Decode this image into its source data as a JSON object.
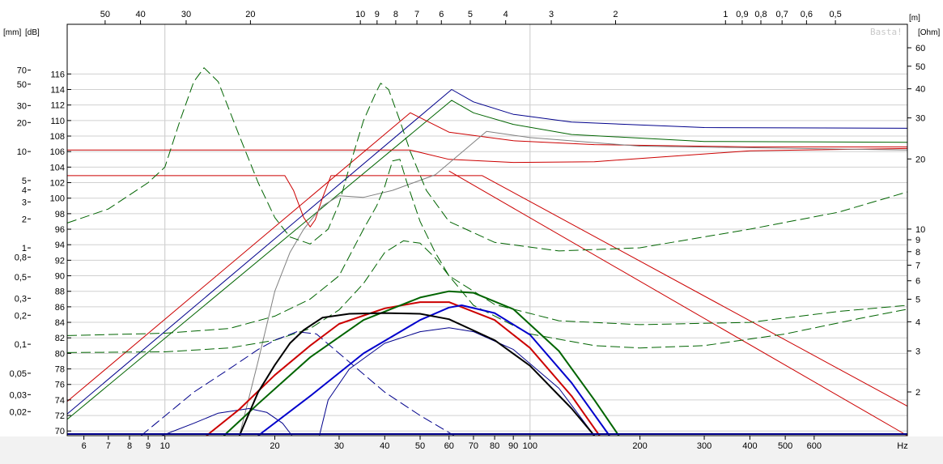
{
  "chart_data": {
    "type": "line",
    "watermark": "Basta!",
    "units": {
      "mm": "[mm]",
      "db": "[dB]",
      "m": "[m]",
      "ohm": "[Ohm]",
      "hz": "Hz"
    },
    "x_axis": {
      "scale": "log",
      "range_hz": [
        5.4,
        1080
      ],
      "ticks": [
        "6",
        "7",
        "8",
        "9",
        "10",
        "20",
        "30",
        "40",
        "50",
        "60",
        "70",
        "80",
        "90",
        "100",
        "200",
        "300",
        "400",
        "500",
        "600",
        "Hz"
      ],
      "tick_values": [
        6,
        7,
        8,
        9,
        10,
        20,
        30,
        40,
        50,
        60,
        70,
        80,
        90,
        100,
        200,
        300,
        400,
        500,
        600,
        null
      ]
    },
    "top_axis": {
      "label": "[m]",
      "ticks": [
        "50",
        "40",
        "30",
        "20",
        "10",
        "9",
        "8",
        "7",
        "6",
        "5",
        "4",
        "3",
        "2",
        "1",
        "0,9",
        "0,8",
        "0,7",
        "0,6",
        "0,5"
      ],
      "tick_values": [
        50,
        40,
        30,
        20,
        10,
        9,
        8,
        7,
        6,
        5,
        4,
        3,
        2,
        1,
        0.9,
        0.8,
        0.7,
        0.6,
        0.5
      ]
    },
    "db_axis": {
      "label": "[dB]",
      "range": [
        69.4,
        122.4
      ],
      "ticks": [
        "70",
        "72",
        "74",
        "76",
        "78",
        "80",
        "82",
        "84",
        "86",
        "88",
        "90",
        "92",
        "94",
        "96",
        "98",
        "100",
        "102",
        "104",
        "106",
        "108",
        "110",
        "112",
        "114",
        "116"
      ],
      "tick_values": [
        70,
        72,
        74,
        76,
        78,
        80,
        82,
        84,
        86,
        88,
        90,
        92,
        94,
        96,
        98,
        100,
        102,
        104,
        106,
        108,
        110,
        112,
        114,
        116
      ]
    },
    "mm_axis": {
      "label": "[mm]",
      "ticks": [
        "70",
        "50",
        "30",
        "20",
        "10",
        "5",
        "4",
        "3",
        "2",
        "1",
        "0,8",
        "0,5",
        "0,3",
        "0,2",
        "0,1",
        "0,05",
        "0,03",
        "0,02"
      ],
      "tick_values": [
        70,
        50,
        30,
        20,
        10,
        5,
        4,
        3,
        2,
        1,
        0.8,
        0.5,
        0.3,
        0.2,
        0.1,
        0.05,
        0.03,
        0.02
      ]
    },
    "ohm_axis": {
      "label": "[Ohm]",
      "ticks": [
        "60",
        "50",
        "40",
        "30",
        "20",
        "10",
        "9",
        "8",
        "7",
        "6",
        "5",
        "4",
        "3",
        "2"
      ],
      "tick_values": [
        60,
        50,
        40,
        30,
        20,
        10,
        9,
        8,
        7,
        6,
        5,
        4,
        3,
        2
      ]
    },
    "series": [
      {
        "color": "#00008b",
        "width": 1,
        "dash": false,
        "points": [
          [
            5.4,
            72.2
          ],
          [
            61,
            114
          ],
          [
            70,
            112.4
          ],
          [
            90,
            110.8
          ],
          [
            130,
            109.8
          ],
          [
            300,
            109.1
          ],
          [
            1080,
            109
          ]
        ]
      },
      {
        "color": "#006400",
        "width": 1,
        "dash": false,
        "points": [
          [
            5.4,
            71.5
          ],
          [
            61,
            112.6
          ],
          [
            70,
            111
          ],
          [
            90,
            109.5
          ],
          [
            130,
            108.2
          ],
          [
            300,
            107.3
          ],
          [
            1080,
            107.2
          ]
        ]
      },
      {
        "color": "#cc0000",
        "width": 1,
        "dash": false,
        "points": [
          [
            5.4,
            73.8
          ],
          [
            47,
            111
          ],
          [
            60,
            108.5
          ],
          [
            90,
            107.4
          ],
          [
            150,
            106.9
          ],
          [
            400,
            106.6
          ],
          [
            1080,
            106.6
          ]
        ]
      },
      {
        "color": "#cc0000",
        "width": 1,
        "dash": false,
        "points": [
          [
            5.4,
            106.2
          ],
          [
            47,
            106.2
          ],
          [
            60,
            105
          ],
          [
            90,
            104.6
          ],
          [
            150,
            104.7
          ],
          [
            400,
            106.1
          ],
          [
            1080,
            106.4
          ]
        ]
      },
      {
        "color": "#cc0000",
        "width": 1,
        "dash": false,
        "points": [
          [
            5.4,
            102.9
          ],
          [
            21.3,
            102.9
          ],
          [
            22.5,
            101
          ],
          [
            24,
            97.5
          ],
          [
            25,
            96.3
          ],
          [
            25.8,
            97.2
          ],
          [
            27,
            100
          ],
          [
            28.5,
            102.9
          ],
          [
            74,
            102.9
          ],
          [
            1080,
            73.2
          ]
        ]
      },
      {
        "color": "#cc0000",
        "width": 1,
        "dash": false,
        "points": [
          [
            60,
            103.5
          ],
          [
            1080,
            69.3
          ]
        ]
      },
      {
        "color": "#808080",
        "width": 1,
        "dash": false,
        "points": [
          [
            16,
            69.4
          ],
          [
            18,
            79
          ],
          [
            20,
            88
          ],
          [
            22,
            93
          ],
          [
            24,
            96
          ],
          [
            27,
            99
          ],
          [
            30,
            100.3
          ],
          [
            35,
            100.1
          ],
          [
            42,
            101
          ],
          [
            55,
            103
          ],
          [
            76,
            108.6
          ],
          [
            100,
            107.8
          ],
          [
            200,
            106.7
          ],
          [
            1080,
            106.2
          ]
        ]
      },
      {
        "color": "#006400",
        "width": 1,
        "dash": true,
        "points": [
          [
            5.4,
            96.8
          ],
          [
            7,
            98.6
          ],
          [
            9,
            102
          ],
          [
            10,
            104
          ],
          [
            11,
            110
          ],
          [
            12,
            115
          ],
          [
            12.8,
            116.8
          ],
          [
            14,
            115
          ],
          [
            16,
            108
          ],
          [
            18,
            102
          ],
          [
            20,
            97.5
          ],
          [
            22,
            95
          ],
          [
            25,
            94.1
          ],
          [
            28,
            96
          ],
          [
            30,
            99.3
          ],
          [
            32,
            104
          ],
          [
            35,
            110
          ],
          [
            38,
            113.8
          ],
          [
            39,
            114.8
          ],
          [
            41,
            114
          ],
          [
            44,
            110
          ],
          [
            47,
            106
          ],
          [
            52,
            101
          ],
          [
            60,
            97
          ],
          [
            80,
            94.3
          ],
          [
            120,
            93.2
          ],
          [
            200,
            93.6
          ],
          [
            400,
            96
          ],
          [
            700,
            98.2
          ],
          [
            1080,
            100.8
          ]
        ]
      },
      {
        "color": "#006400",
        "width": 1,
        "dash": true,
        "points": [
          [
            5.4,
            82.3
          ],
          [
            10,
            82.6
          ],
          [
            15,
            83.2
          ],
          [
            20,
            84.8
          ],
          [
            25,
            87
          ],
          [
            30,
            90
          ],
          [
            35,
            96
          ],
          [
            38,
            99
          ],
          [
            40,
            101.5
          ],
          [
            42,
            104.8
          ],
          [
            44,
            105
          ],
          [
            46,
            102
          ],
          [
            50,
            97
          ],
          [
            55,
            93
          ],
          [
            60,
            90
          ],
          [
            80,
            86.3
          ],
          [
            120,
            84.2
          ],
          [
            200,
            83.7
          ],
          [
            400,
            84
          ],
          [
            700,
            85.4
          ],
          [
            1080,
            86.2
          ]
        ]
      },
      {
        "color": "#006400",
        "width": 1,
        "dash": true,
        "points": [
          [
            5.4,
            80.1
          ],
          [
            10,
            80.2
          ],
          [
            15,
            80.7
          ],
          [
            20,
            81.7
          ],
          [
            25,
            83.2
          ],
          [
            30,
            85.6
          ],
          [
            35,
            89
          ],
          [
            40,
            93
          ],
          [
            45,
            94.5
          ],
          [
            50,
            94.2
          ],
          [
            55,
            92.3
          ],
          [
            60,
            90
          ],
          [
            70,
            86.2
          ],
          [
            100,
            82.5
          ],
          [
            150,
            81
          ],
          [
            200,
            80.7
          ],
          [
            300,
            81
          ],
          [
            500,
            82.5
          ],
          [
            800,
            84.5
          ],
          [
            1080,
            85.7
          ]
        ]
      },
      {
        "color": "#00008b",
        "width": 1,
        "dash": true,
        "points": [
          [
            8.6,
            69.4
          ],
          [
            12,
            75
          ],
          [
            15,
            78
          ],
          [
            18,
            80.5
          ],
          [
            20,
            81.7
          ],
          [
            23,
            82.8
          ],
          [
            26,
            82.5
          ],
          [
            30,
            80
          ],
          [
            40,
            75
          ],
          [
            50,
            72
          ],
          [
            62,
            69.4
          ]
        ]
      },
      {
        "color": "#00008b",
        "width": 1,
        "dash": false,
        "points": [
          [
            9.8,
            69.4
          ],
          [
            12,
            71
          ],
          [
            14,
            72.3
          ],
          [
            17,
            72.9
          ],
          [
            19,
            72.4
          ],
          [
            21,
            71
          ],
          [
            22.3,
            69.4
          ]
        ]
      },
      {
        "color": "#00008b",
        "width": 1,
        "dash": false,
        "points": [
          [
            26.5,
            69.4
          ],
          [
            28,
            74
          ],
          [
            32,
            78
          ],
          [
            40,
            81.3
          ],
          [
            50,
            82.8
          ],
          [
            60,
            83.3
          ],
          [
            70,
            82.8
          ],
          [
            90,
            80.5
          ],
          [
            120,
            75.5
          ],
          [
            150,
            69.4
          ]
        ]
      },
      {
        "color": "#cc0000",
        "width": 2,
        "dash": false,
        "points": [
          [
            13,
            69.4
          ],
          [
            16,
            72.8
          ],
          [
            20,
            77.2
          ],
          [
            25,
            81
          ],
          [
            30,
            83.8
          ],
          [
            40,
            85.8
          ],
          [
            50,
            86.6
          ],
          [
            60,
            86.6
          ],
          [
            80,
            84.3
          ],
          [
            100,
            80.7
          ],
          [
            130,
            74.5
          ],
          [
            155,
            69.4
          ]
        ]
      },
      {
        "color": "#006400",
        "width": 2,
        "dash": false,
        "points": [
          [
            14.5,
            69.4
          ],
          [
            18,
            73.5
          ],
          [
            25,
            79.5
          ],
          [
            35,
            84.3
          ],
          [
            50,
            87.2
          ],
          [
            60,
            88
          ],
          [
            70,
            87.8
          ],
          [
            90,
            85.7
          ],
          [
            120,
            80.3
          ],
          [
            150,
            74
          ],
          [
            175,
            69.4
          ]
        ]
      },
      {
        "color": "#0000cc",
        "width": 2,
        "dash": false,
        "points": [
          [
            18,
            69.4
          ],
          [
            25,
            74.5
          ],
          [
            35,
            80
          ],
          [
            50,
            84.3
          ],
          [
            60,
            85.9
          ],
          [
            65,
            86.2
          ],
          [
            80,
            85.2
          ],
          [
            100,
            82.4
          ],
          [
            130,
            76.2
          ],
          [
            165,
            69.4
          ]
        ]
      },
      {
        "color": "#000000",
        "width": 2,
        "dash": false,
        "points": [
          [
            16,
            69.4
          ],
          [
            18,
            75
          ],
          [
            20,
            78.5
          ],
          [
            22,
            81.3
          ],
          [
            24,
            83
          ],
          [
            27,
            84.6
          ],
          [
            32,
            85.1
          ],
          [
            40,
            85.2
          ],
          [
            50,
            85.1
          ],
          [
            60,
            84.4
          ],
          [
            80,
            81.7
          ],
          [
            100,
            78.4
          ],
          [
            130,
            72.9
          ],
          [
            150,
            69.4
          ]
        ]
      }
    ]
  }
}
